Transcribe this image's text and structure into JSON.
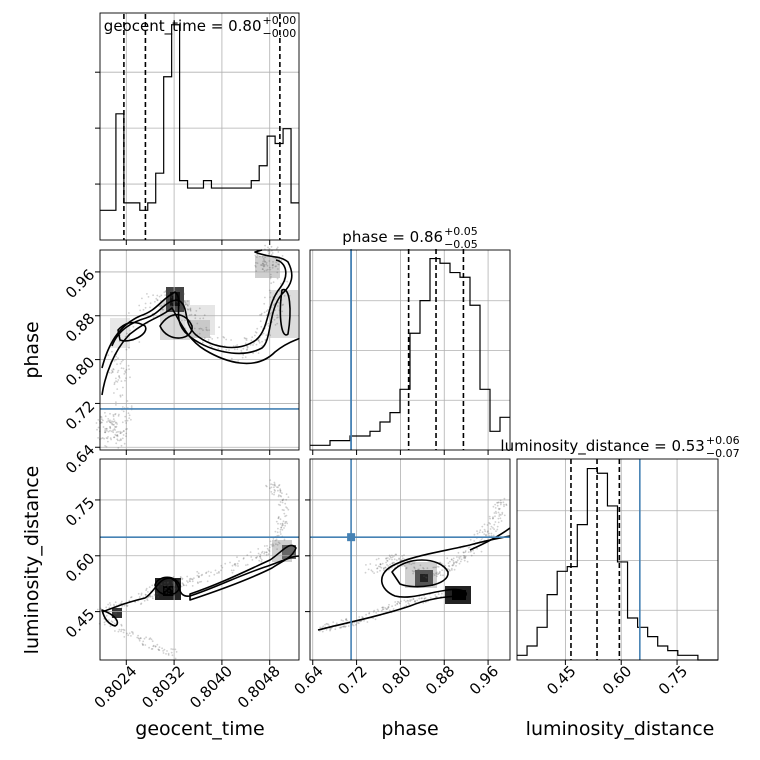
{
  "chart_data": {
    "type": "corner",
    "parameters": [
      "geocent_time",
      "phase",
      "luminosity_distance"
    ],
    "titles": [
      {
        "param": "geocent_time",
        "prefix": "geocent_time = ",
        "median": "0.80",
        "plus": "+0.00",
        "minus": "−0.00"
      },
      {
        "param": "phase",
        "prefix": "phase = ",
        "median": "0.86",
        "plus": "+0.05",
        "minus": "−0.05"
      },
      {
        "param": "luminosity_distance",
        "prefix": "luminosity_distance = ",
        "median": "0.53",
        "plus": "+0.06",
        "minus": "−0.07"
      }
    ],
    "axes": {
      "geocent_time": {
        "range": [
          0.80196,
          0.80529
        ],
        "ticks": [
          0.8024,
          0.8032,
          0.804,
          0.8048
        ],
        "tick_labels": [
          "0.8024",
          "0.8032",
          "0.8040",
          "0.8048"
        ]
      },
      "phase": {
        "range": [
          0.635,
          1.0
        ],
        "ticks": [
          0.64,
          0.72,
          0.8,
          0.88,
          0.96
        ],
        "tick_labels": [
          "0.64",
          "0.72",
          "0.80",
          "0.88",
          "0.96"
        ]
      },
      "luminosity_distance": {
        "range": [
          0.32,
          0.86
        ],
        "ticks": [
          0.45,
          0.6,
          0.75
        ],
        "tick_labels": [
          "0.45",
          "0.60",
          "0.75"
        ]
      }
    },
    "truth": {
      "geocent_time": null,
      "phase": 0.71,
      "luminosity_distance": 0.65
    },
    "truth_color": "#4682b4",
    "quantiles": {
      "geocent_time": [
        0.80236,
        0.80272,
        0.80497
      ],
      "phase": [
        0.815,
        0.865,
        0.915
      ],
      "luminosity_distance": [
        0.465,
        0.535,
        0.595
      ]
    },
    "hist_geocent_time": {
      "edges_min": 0.80196,
      "edges_max": 0.80529,
      "counts": [
        4,
        4,
        17,
        5,
        5,
        4,
        5,
        9,
        22,
        29,
        8,
        7,
        7,
        8,
        7,
        7,
        7,
        7,
        7,
        8,
        10,
        14,
        13,
        15,
        5
      ]
    },
    "hist_phase": {
      "edges_min": 0.635,
      "edges_max": 1.0,
      "counts": [
        1,
        1,
        2,
        2,
        3,
        3,
        4,
        6,
        8,
        13,
        25,
        32,
        41,
        40,
        38,
        37,
        31,
        13,
        4,
        7
      ]
    },
    "hist_luminosity_distance": {
      "edges_min": 0.32,
      "edges_max": 0.86,
      "counts": [
        1,
        3,
        7,
        14,
        19,
        20,
        29,
        41,
        40,
        33,
        21,
        9,
        7,
        5,
        3,
        2,
        1,
        1,
        0,
        0
      ]
    },
    "grid": true
  }
}
